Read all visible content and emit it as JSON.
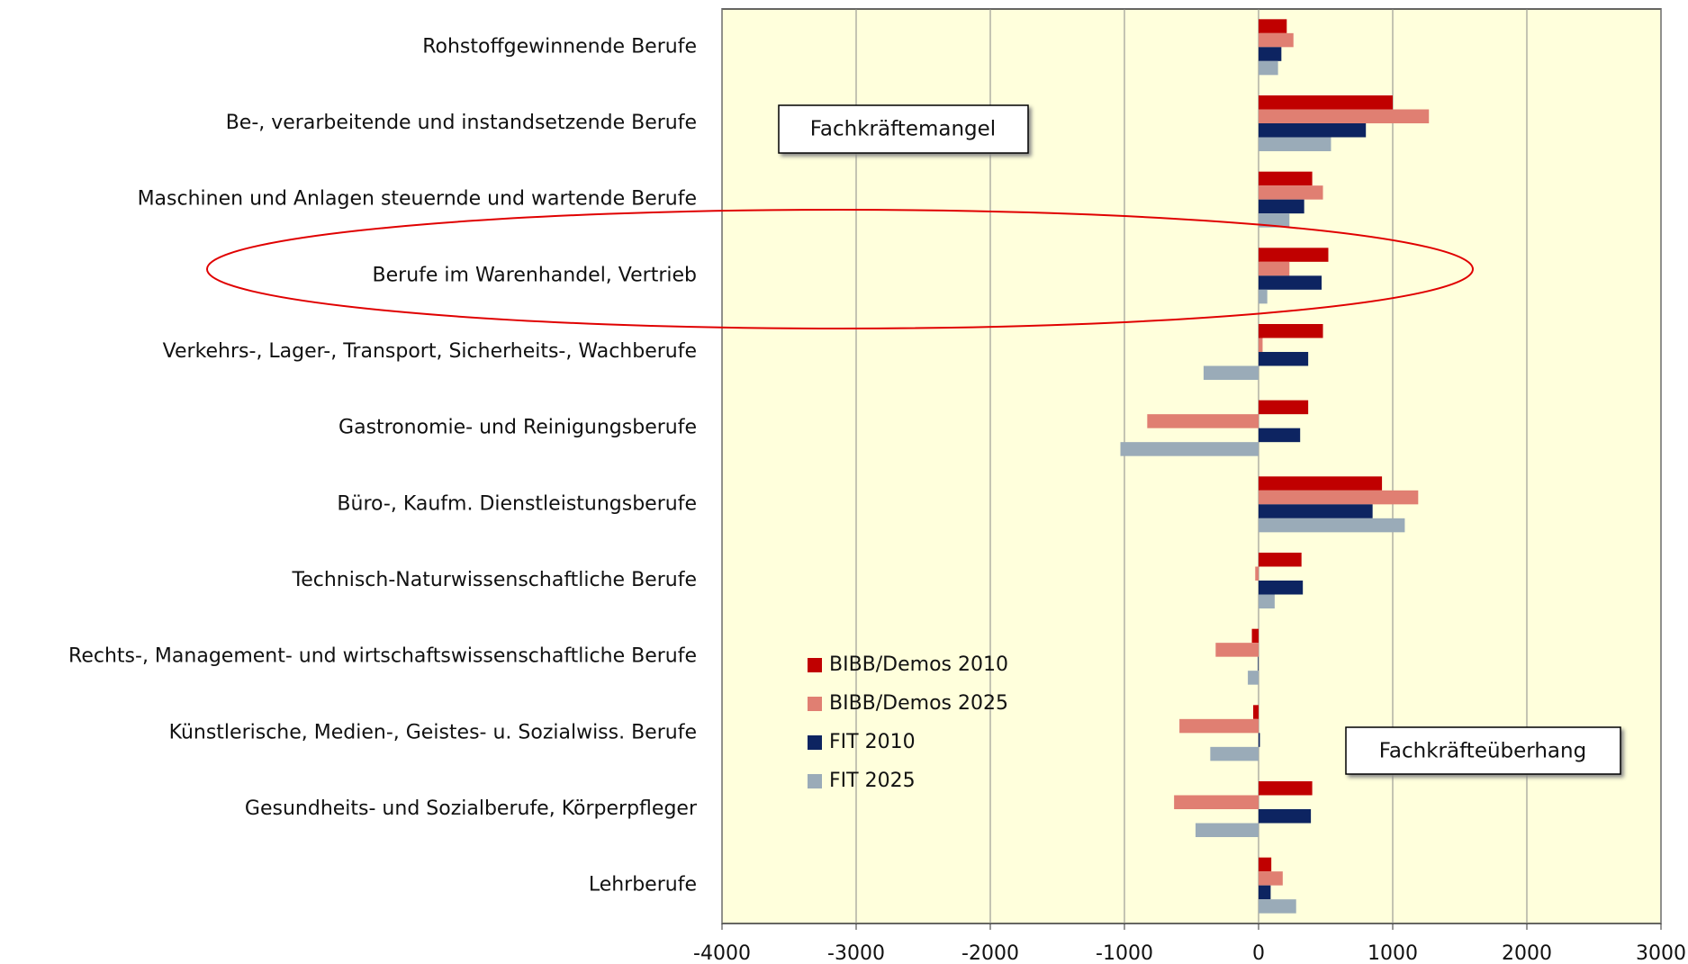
{
  "chart_data": {
    "type": "barh",
    "categories": [
      "Rohstoffgewinnende Berufe",
      "Be-, verarbeitende und instandsetzende Berufe",
      "Maschinen und Anlagen steuernde und wartende Berufe",
      "Berufe im Warenhandel, Vertrieb",
      "Verkehrs-, Lager-, Transport, Sicherheits-, Wachberufe",
      "Gastronomie- und Reinigungsberufe",
      "Büro-, Kaufm. Dienstleistungsberufe",
      "Technisch-Naturwissenschaftliche Berufe",
      "Rechts-, Management- und wirtschaftswissenschaftliche Berufe",
      "Künstlerische, Medien-, Geistes- u. Sozialwiss. Berufe",
      "Gesundheits- und Sozialberufe, Körperpfleger",
      "Lehrberufe"
    ],
    "series": [
      {
        "name": "BIBB/Demos 2010",
        "color": "#c00000",
        "values": [
          210,
          1000,
          400,
          520,
          480,
          370,
          920,
          320,
          -50,
          -40,
          400,
          95
        ]
      },
      {
        "name": "BIBB/Demos 2025",
        "color": "#e07f72",
        "values": [
          260,
          1270,
          480,
          230,
          30,
          -830,
          1190,
          -25,
          -320,
          -590,
          -630,
          180
        ]
      },
      {
        "name": "FIT 2010",
        "color": "#0d2461",
        "values": [
          170,
          800,
          340,
          470,
          370,
          310,
          850,
          330,
          -5,
          10,
          390,
          90
        ]
      },
      {
        "name": "FIT 2025",
        "color": "#9aabb8",
        "values": [
          145,
          540,
          230,
          65,
          -410,
          -1030,
          1090,
          120,
          -80,
          -360,
          -470,
          280
        ]
      }
    ],
    "xlim": [
      -4000,
      3000
    ],
    "xticks": [
      -4000,
      -3000,
      -2000,
      -1000,
      0,
      1000,
      2000,
      3000
    ],
    "grid": true,
    "legend": "lower-left",
    "annotations": [
      "Fachkräftemangel",
      "Fachkräfteüberhang"
    ]
  }
}
